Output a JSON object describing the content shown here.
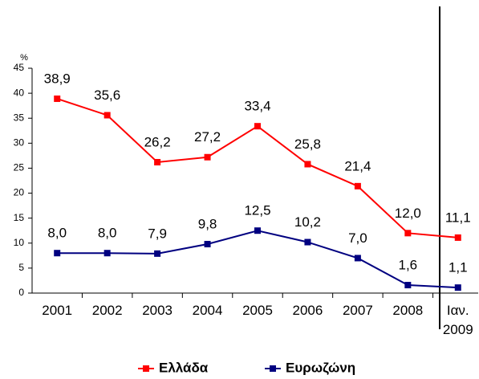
{
  "chart_data": {
    "type": "line",
    "unit": "%",
    "categories": [
      "2001",
      "2002",
      "2003",
      "2004",
      "2005",
      "2006",
      "2007",
      "2008",
      "Ιαν. 2009"
    ],
    "series": [
      {
        "name": "Ελλάδα",
        "color": "#ff0000",
        "values": [
          38.9,
          35.6,
          26.2,
          27.2,
          33.4,
          25.8,
          21.4,
          12.0,
          11.1
        ],
        "value_labels": [
          "38,9",
          "35,6",
          "26,2",
          "27,2",
          "33,4",
          "25,8",
          "21,4",
          "12,0",
          "11,1"
        ]
      },
      {
        "name": "Ευρωζώνη",
        "color": "#000080",
        "values": [
          8.0,
          8.0,
          7.9,
          9.8,
          12.5,
          10.2,
          7.0,
          1.6,
          1.1
        ],
        "value_labels": [
          "8,0",
          "8,0",
          "7,9",
          "9,8",
          "12,5",
          "10,2",
          "7,0",
          "1,6",
          "1,1"
        ]
      }
    ],
    "ylim": [
      0,
      45
    ],
    "yticks": [
      0,
      5,
      10,
      15,
      20,
      25,
      30,
      35,
      40,
      45
    ],
    "grid": false,
    "legend": "bottom"
  }
}
